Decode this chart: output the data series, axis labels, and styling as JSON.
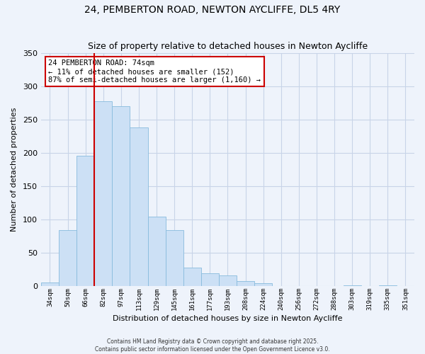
{
  "title": "24, PEMBERTON ROAD, NEWTON AYCLIFFE, DL5 4RY",
  "subtitle": "Size of property relative to detached houses in Newton Aycliffe",
  "xlabel": "Distribution of detached houses by size in Newton Aycliffe",
  "ylabel": "Number of detached properties",
  "bin_labels": [
    "34sqm",
    "50sqm",
    "66sqm",
    "82sqm",
    "97sqm",
    "113sqm",
    "129sqm",
    "145sqm",
    "161sqm",
    "177sqm",
    "193sqm",
    "208sqm",
    "224sqm",
    "240sqm",
    "256sqm",
    "272sqm",
    "288sqm",
    "303sqm",
    "319sqm",
    "335sqm",
    "351sqm"
  ],
  "bar_values": [
    6,
    84,
    196,
    277,
    270,
    238,
    104,
    84,
    28,
    20,
    16,
    8,
    5,
    0,
    0,
    0,
    0,
    1,
    0,
    1,
    0
  ],
  "bar_color": "#cce0f5",
  "bar_edge_color": "#88bbdd",
  "vline_x": 2.5,
  "vline_color": "#cc0000",
  "ylim": [
    0,
    350
  ],
  "yticks": [
    0,
    50,
    100,
    150,
    200,
    250,
    300,
    350
  ],
  "annotation_title": "24 PEMBERTON ROAD: 74sqm",
  "annotation_line1": "← 11% of detached houses are smaller (152)",
  "annotation_line2": "87% of semi-detached houses are larger (1,160) →",
  "annotation_box_color": "#ffffff",
  "annotation_box_edge": "#cc0000",
  "footer1": "Contains HM Land Registry data © Crown copyright and database right 2025.",
  "footer2": "Contains public sector information licensed under the Open Government Licence v3.0.",
  "bg_color": "#eef3fb",
  "grid_color": "#c8d4e8",
  "title_fontsize": 10,
  "subtitle_fontsize": 9
}
